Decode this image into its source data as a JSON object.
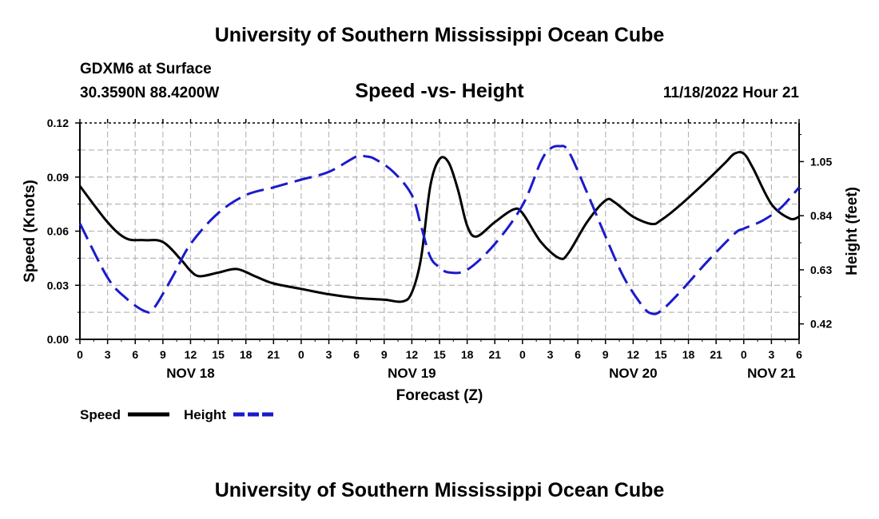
{
  "header": {
    "title": "University of Southern Mississippi Ocean Cube",
    "station": "GDXM6 at Surface",
    "coordinates": "30.3590N  88.4200W",
    "date_hour": "11/18/2022 Hour 21"
  },
  "footer": {
    "title": "University of Southern Mississippi Ocean Cube"
  },
  "chart_data": {
    "type": "line",
    "title": "Speed -vs- Height",
    "xlabel": "Forecast (Z)",
    "ylabel": "Speed (Knots)",
    "y2label": "Height (feet)",
    "xlim": [
      0,
      78
    ],
    "ylim": [
      0,
      0.12
    ],
    "y2lim": [
      0.36,
      1.2
    ],
    "x_tick_labels": [
      "0",
      "3",
      "6",
      "9",
      "12",
      "15",
      "18",
      "21",
      "0",
      "3",
      "6",
      "9",
      "12",
      "15",
      "18",
      "21",
      "0",
      "3",
      "6",
      "9",
      "12",
      "15",
      "18",
      "21",
      "0",
      "3",
      "6"
    ],
    "day_labels": [
      {
        "x": 12,
        "label": "NOV 18"
      },
      {
        "x": 36,
        "label": "NOV 19"
      },
      {
        "x": 60,
        "label": "NOV 20"
      },
      {
        "x": 75,
        "label": "NOV 21"
      }
    ],
    "y_ticks": [
      "0.00",
      "0.03",
      "0.06",
      "0.09",
      "0.12"
    ],
    "y_tick_values": [
      0,
      0.03,
      0.06,
      0.09,
      0.12
    ],
    "y2_ticks": [
      "0.42",
      "0.63",
      "0.84",
      "1.05"
    ],
    "y2_tick_values": [
      0.42,
      0.63,
      0.84,
      1.05
    ],
    "grid": true,
    "legend_position": "bottom-left",
    "series": [
      {
        "name": "Speed",
        "axis": "left",
        "color": "#000000",
        "dashed": false,
        "x": [
          0,
          3,
          5,
          7,
          9,
          11,
          12,
          13,
          15,
          17,
          19,
          21,
          24,
          27,
          30,
          33,
          35,
          36,
          37,
          38,
          39,
          40,
          41,
          42,
          43,
          45,
          47,
          48,
          50,
          52,
          53,
          55,
          57,
          58,
          60,
          62,
          63,
          65,
          68,
          70,
          71,
          72,
          73,
          75,
          77,
          78
        ],
        "values": [
          0.085,
          0.065,
          0.056,
          0.055,
          0.054,
          0.044,
          0.038,
          0.035,
          0.037,
          0.039,
          0.035,
          0.031,
          0.028,
          0.025,
          0.023,
          0.022,
          0.021,
          0.026,
          0.045,
          0.085,
          0.1,
          0.098,
          0.083,
          0.063,
          0.057,
          0.065,
          0.072,
          0.07,
          0.054,
          0.045,
          0.048,
          0.065,
          0.077,
          0.076,
          0.068,
          0.064,
          0.066,
          0.074,
          0.088,
          0.098,
          0.103,
          0.103,
          0.095,
          0.075,
          0.067,
          0.068
        ]
      },
      {
        "name": "Height",
        "axis": "right",
        "color": "#1a1acc",
        "dashed": true,
        "x": [
          0,
          3,
          5,
          7,
          8,
          10,
          12,
          15,
          18,
          21,
          24,
          27,
          30,
          31,
          32,
          34,
          36,
          37,
          38,
          39,
          40,
          42,
          45,
          48,
          50,
          51,
          52,
          53,
          55,
          57,
          59,
          61,
          62,
          63,
          65,
          68,
          71,
          72,
          74,
          76,
          78
        ],
        "values": [
          0.81,
          0.6,
          0.52,
          0.47,
          0.48,
          0.6,
          0.73,
          0.85,
          0.92,
          0.95,
          0.98,
          1.01,
          1.07,
          1.07,
          1.06,
          1.01,
          0.92,
          0.8,
          0.68,
          0.64,
          0.62,
          0.63,
          0.73,
          0.88,
          1.05,
          1.1,
          1.11,
          1.09,
          0.93,
          0.76,
          0.6,
          0.49,
          0.46,
          0.47,
          0.54,
          0.66,
          0.77,
          0.79,
          0.82,
          0.87,
          0.95
        ]
      }
    ],
    "legend": [
      {
        "label": "Speed",
        "color": "#000000",
        "dashed": false
      },
      {
        "label": "Height",
        "color": "#1a1acc",
        "dashed": true
      }
    ]
  }
}
